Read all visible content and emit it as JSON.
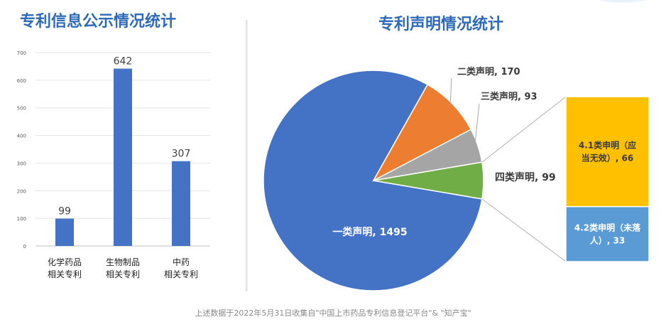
{
  "left": {
    "title": "专利信息公示情况统计",
    "chart_data": {
      "type": "bar",
      "categories": [
        [
          "化学药品",
          "相关专利"
        ],
        [
          "生物制品",
          "相关专利"
        ],
        [
          "中药",
          "相关专利"
        ]
      ],
      "values": [
        99,
        642,
        307
      ],
      "data_labels": [
        "99",
        "642",
        "307"
      ],
      "ylim": [
        0,
        700
      ],
      "y_ticks": [
        "0",
        "100",
        "200",
        "300",
        "400",
        "500",
        "600",
        "700"
      ],
      "grid": true,
      "color": "#4472c4"
    }
  },
  "right": {
    "title": "专利声明情况统计",
    "chart_data": {
      "type": "pie",
      "slices": [
        {
          "label": "一类声明, 1495",
          "value": 1495,
          "color": "#4472c4"
        },
        {
          "label": "二类声明, 170",
          "value": 170,
          "color": "#ed7d31"
        },
        {
          "label": "三类声明, 93",
          "value": 93,
          "color": "#a5a5a5"
        },
        {
          "label": "四类声明, 99",
          "value": 99,
          "color": "#70ad47"
        }
      ],
      "breakdown": {
        "of": "四类声明, 99",
        "items": [
          {
            "label": [
              "4.1类申明（应",
              "当无效）, 66"
            ],
            "value": 66,
            "color": "#ffc000"
          },
          {
            "label": [
              "4.2类申明（未落",
              "人）, 33"
            ],
            "value": 33,
            "color": "#5b9bd5"
          }
        ]
      }
    }
  },
  "footnote": "上述数据于2022年5月31日收集自\"中国上市药品专利信息登记平台\"& \"知产宝\""
}
